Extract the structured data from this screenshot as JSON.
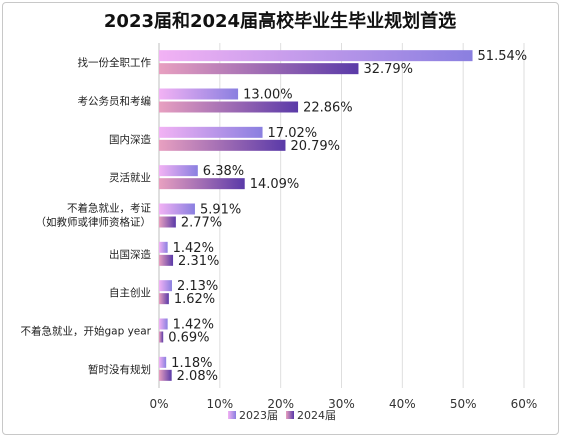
{
  "chart_data": {
    "type": "bar",
    "orientation": "horizontal",
    "title": "2023届和2024届高校毕业生毕业规划首选",
    "categories": [
      [
        "找一份全职工作"
      ],
      [
        "考公务员和考编"
      ],
      [
        "国内深造"
      ],
      [
        "灵活就业"
      ],
      [
        "不着急就业，考证",
        "（如教师或律师资格证）"
      ],
      [
        "出国深造"
      ],
      [
        "自主创业"
      ],
      [
        "不着急就业，开始gap year"
      ],
      [
        "暂时没有规划"
      ]
    ],
    "series": [
      {
        "name": "2023届",
        "values": [
          51.54,
          13.0,
          17.02,
          6.38,
          5.91,
          1.42,
          2.13,
          1.42,
          1.18
        ],
        "labels": [
          "51.54%",
          "13.00%",
          "17.02%",
          "6.38%",
          "5.91%",
          "1.42%",
          "2.13%",
          "1.42%",
          "1.18%"
        ],
        "color_start": "#f2b2f4",
        "color_end": "#8a7fe0"
      },
      {
        "name": "2024届",
        "values": [
          32.79,
          22.86,
          20.79,
          14.09,
          2.77,
          2.31,
          1.62,
          0.69,
          2.08
        ],
        "labels": [
          "32.79%",
          "22.86%",
          "20.79%",
          "14.09%",
          "2.77%",
          "2.31%",
          "1.62%",
          "0.69%",
          "2.08%"
        ],
        "color_start": "#e8a0c0",
        "color_end": "#5a3aa8"
      }
    ],
    "xlim": [
      0,
      60
    ],
    "xticks": [
      0,
      10,
      20,
      30,
      40,
      50,
      60
    ],
    "xtick_labels": [
      "0%",
      "10%",
      "20%",
      "30%",
      "40%",
      "50%",
      "60%"
    ],
    "legend_position": "bottom",
    "grid": true
  }
}
